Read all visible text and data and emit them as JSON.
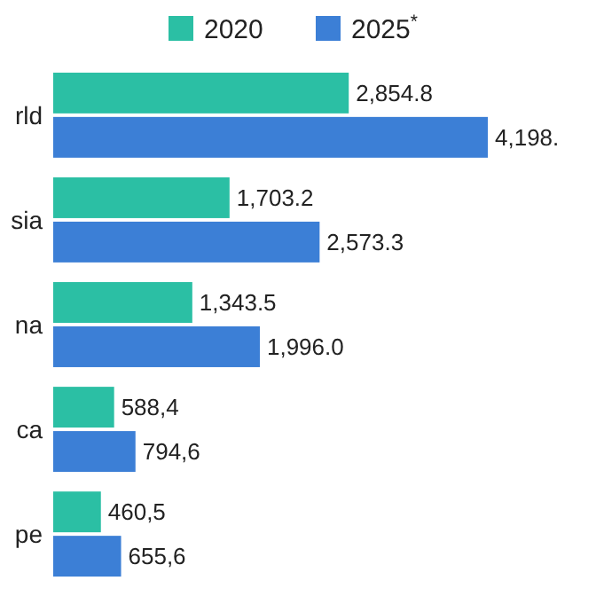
{
  "chart_data": {
    "type": "bar",
    "orientation": "horizontal",
    "categories": [
      "rld",
      "sia",
      "na",
      "ca",
      "pe"
    ],
    "series": [
      {
        "name": "2020",
        "color": "#2bbfa4",
        "values": [
          2854.8,
          1703.2,
          1343.5,
          588.4,
          460.5
        ],
        "value_labels": [
          "2,854.8",
          "1,703.2",
          "1,343.5",
          "588,4",
          "460,5"
        ]
      },
      {
        "name": "2025$^{*}$",
        "color": "#3c7fd6",
        "values": [
          4198,
          2573.3,
          1996.0,
          794.6,
          655.6
        ],
        "value_labels": [
          "4,198.",
          "2,573.3",
          "1,996.0",
          "794,6",
          "655,6"
        ]
      }
    ],
    "legend": "top"
  }
}
